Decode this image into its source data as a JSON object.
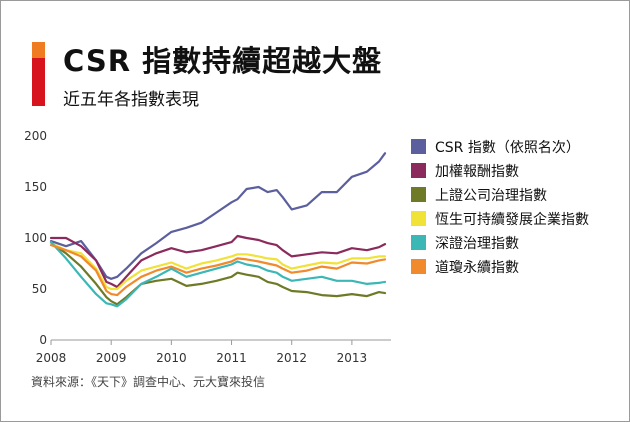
{
  "header": {
    "title": "CSR 指數持續超越大盤",
    "subtitle": "近五年各指數表現",
    "accent_colors": [
      "#f07c22",
      "#d7141d"
    ]
  },
  "source": "資料來源：《天下》調查中心、元大寶來投信",
  "chart_data": {
    "type": "line",
    "title": "CSR 指數持續超越大盤",
    "subtitle": "近五年各指數表現",
    "xlabel": "",
    "ylabel": "",
    "xlim": [
      2008.0,
      2013.65
    ],
    "ylim": [
      0,
      200
    ],
    "x_ticks": [
      "2008",
      "2009",
      "2010",
      "2011",
      "2012",
      "2013"
    ],
    "y_ticks": [
      "0",
      "50",
      "100",
      "150",
      "200"
    ],
    "grid": false,
    "legend_position": "right",
    "x": [
      2008.0,
      2008.25,
      2008.5,
      2008.75,
      2008.92,
      2009.0,
      2009.1,
      2009.25,
      2009.5,
      2009.75,
      2010.0,
      2010.25,
      2010.5,
      2010.75,
      2011.0,
      2011.1,
      2011.25,
      2011.45,
      2011.6,
      2011.75,
      2011.85,
      2012.0,
      2012.25,
      2012.5,
      2012.75,
      2013.0,
      2013.25,
      2013.45,
      2013.55
    ],
    "series": [
      {
        "name": "CSR 指數（依照名次）",
        "color": "#5b5f9e",
        "values": [
          97,
          92,
          97,
          78,
          62,
          60,
          62,
          70,
          85,
          95,
          106,
          110,
          115,
          125,
          135,
          138,
          148,
          150,
          145,
          147,
          140,
          128,
          132,
          145,
          145,
          160,
          165,
          175,
          183
        ]
      },
      {
        "name": "加權報酬指數",
        "color": "#8b2a5c",
        "values": [
          100,
          100,
          92,
          78,
          57,
          55,
          52,
          62,
          78,
          85,
          90,
          86,
          88,
          92,
          96,
          102,
          100,
          98,
          95,
          93,
          88,
          82,
          84,
          86,
          85,
          90,
          88,
          91,
          94
        ]
      },
      {
        "name": "上證公司治理指數",
        "color": "#6e7a26",
        "values": [
          95,
          85,
          72,
          55,
          42,
          38,
          35,
          42,
          55,
          58,
          60,
          53,
          55,
          58,
          62,
          66,
          64,
          62,
          57,
          55,
          52,
          48,
          47,
          44,
          43,
          45,
          43,
          47,
          46
        ]
      },
      {
        "name": "恆生可持續發展企業指數",
        "color": "#f0e237",
        "values": [
          95,
          88,
          85,
          70,
          52,
          50,
          50,
          58,
          68,
          72,
          76,
          70,
          75,
          78,
          82,
          84,
          84,
          82,
          80,
          79,
          74,
          70,
          73,
          76,
          75,
          80,
          80,
          82,
          82
        ]
      },
      {
        "name": "深證治理指數",
        "color": "#3bb7b6",
        "values": [
          96,
          80,
          62,
          45,
          36,
          35,
          33,
          40,
          55,
          62,
          70,
          62,
          66,
          70,
          74,
          77,
          74,
          72,
          68,
          66,
          62,
          58,
          60,
          62,
          58,
          58,
          55,
          56,
          57
        ]
      },
      {
        "name": "道瓊永續指數",
        "color": "#f08a2c",
        "values": [
          93,
          88,
          82,
          68,
          48,
          45,
          44,
          52,
          62,
          68,
          72,
          66,
          70,
          73,
          77,
          80,
          79,
          77,
          75,
          73,
          70,
          66,
          68,
          72,
          70,
          76,
          75,
          78,
          79
        ]
      }
    ]
  }
}
